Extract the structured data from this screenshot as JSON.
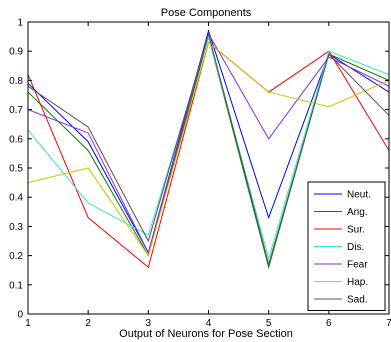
{
  "chart_data": {
    "type": "line",
    "title": "Pose Components",
    "xlabel": "Output of Neurons for Pose Section",
    "ylabel": "",
    "x": [
      1,
      2,
      3,
      4,
      5,
      6,
      7
    ],
    "xlim": [
      1,
      7
    ],
    "ylim": [
      0,
      1
    ],
    "xticks": [
      "1",
      "2",
      "3",
      "4",
      "5",
      "6",
      "7"
    ],
    "yticks": [
      "0",
      "0.1",
      "0.2",
      "0.3",
      "0.4",
      "0.5",
      "0.6",
      "0.7",
      "0.8",
      "0.9",
      "1"
    ],
    "grid": false,
    "legend_position": "bottom-right",
    "series": [
      {
        "name": "Neut.",
        "color": "#0000ff",
        "values": [
          0.79,
          0.59,
          0.21,
          0.97,
          0.33,
          0.89,
          0.76
        ]
      },
      {
        "name": "Ang.",
        "color": "#008000",
        "values": [
          0.76,
          0.56,
          0.2,
          0.95,
          0.16,
          0.89,
          0.8
        ]
      },
      {
        "name": "Sur.",
        "color": "#ff0000",
        "values": [
          0.82,
          0.33,
          0.16,
          0.93,
          0.76,
          0.9,
          0.56
        ]
      },
      {
        "name": "Dis.",
        "color": "#40e0d0",
        "values": [
          0.63,
          0.38,
          0.27,
          0.95,
          0.19,
          0.9,
          0.82
        ]
      },
      {
        "name": "Fear",
        "color": "#8a2be2",
        "values": [
          0.7,
          0.62,
          0.21,
          0.96,
          0.6,
          0.88,
          0.78
        ]
      },
      {
        "name": "Hap.",
        "color": "#c8c800",
        "values": [
          0.45,
          0.5,
          0.2,
          0.93,
          0.76,
          0.71,
          0.8
        ]
      },
      {
        "name": "Sad.",
        "color": "#555555",
        "values": [
          0.78,
          0.64,
          0.25,
          0.96,
          0.17,
          0.89,
          0.68
        ]
      }
    ]
  }
}
